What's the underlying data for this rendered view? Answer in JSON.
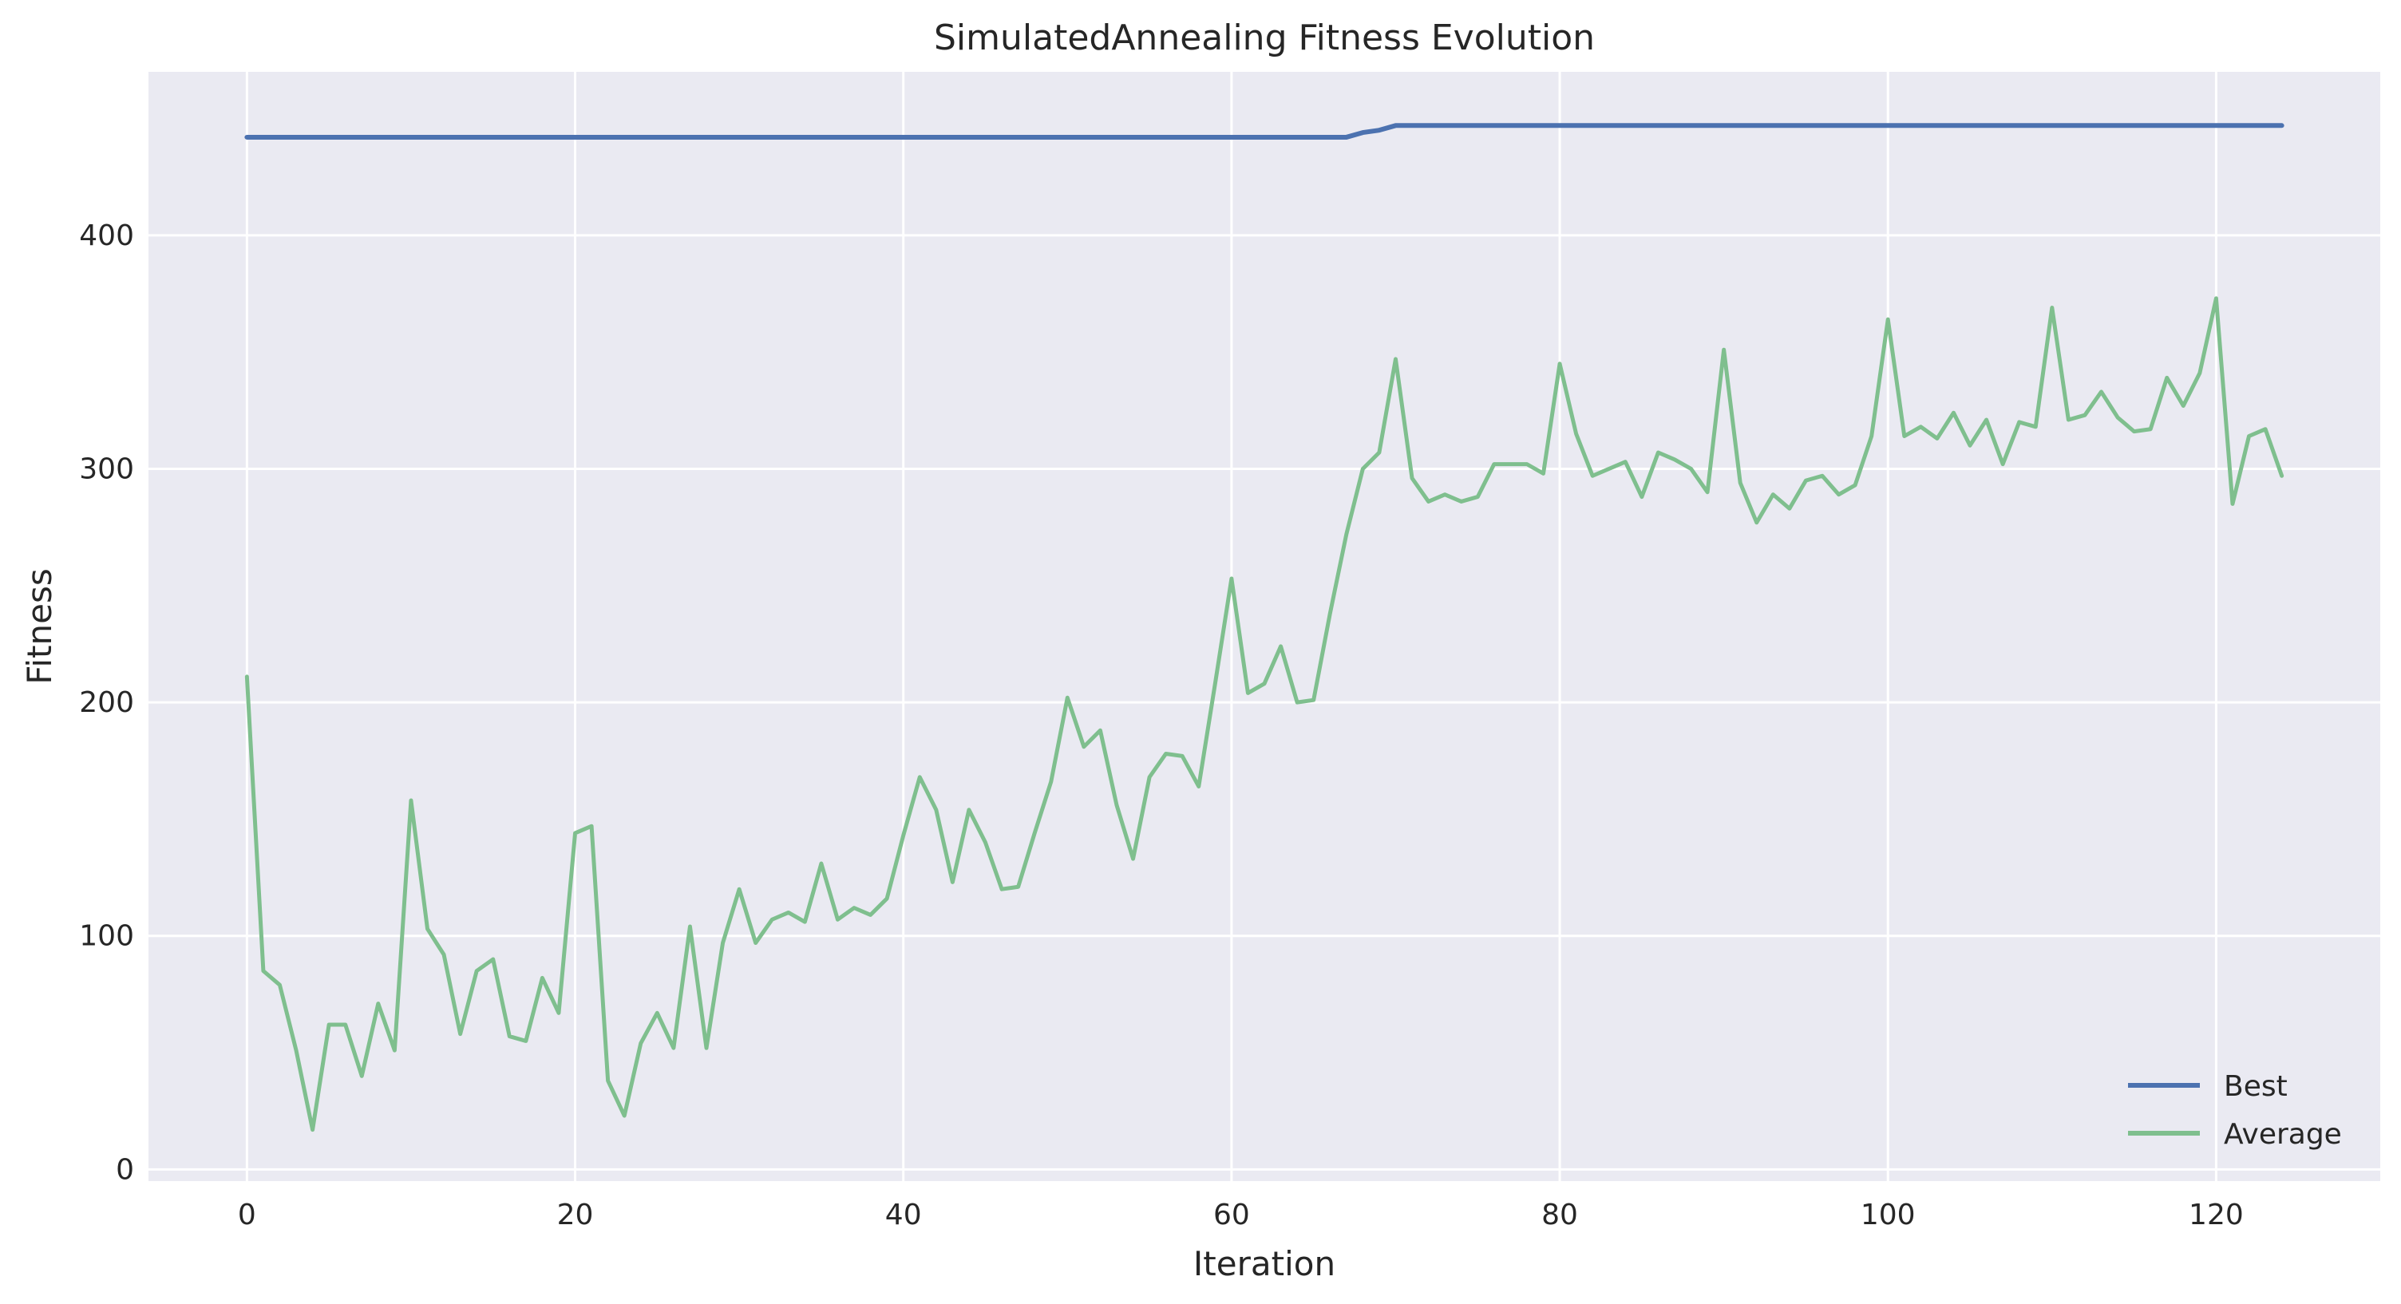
{
  "chart_data": {
    "type": "line",
    "title": "SimulatedAnnealing Fitness Evolution",
    "xlabel": "Iteration",
    "ylabel": "Fitness",
    "xlim": [
      -6,
      130
    ],
    "ylim": [
      -5,
      470
    ],
    "xticks": [
      0,
      20,
      40,
      60,
      80,
      100,
      120
    ],
    "yticks": [
      0,
      100,
      200,
      300,
      400
    ],
    "grid": true,
    "legend_position": "lower-right",
    "x": [
      0,
      1,
      2,
      3,
      4,
      5,
      6,
      7,
      8,
      9,
      10,
      11,
      12,
      13,
      14,
      15,
      16,
      17,
      18,
      19,
      20,
      21,
      22,
      23,
      24,
      25,
      26,
      27,
      28,
      29,
      30,
      31,
      32,
      33,
      34,
      35,
      36,
      37,
      38,
      39,
      40,
      41,
      42,
      43,
      44,
      45,
      46,
      47,
      48,
      49,
      50,
      51,
      52,
      53,
      54,
      55,
      56,
      57,
      58,
      59,
      60,
      61,
      62,
      63,
      64,
      65,
      66,
      67,
      68,
      69,
      70,
      71,
      72,
      73,
      74,
      75,
      76,
      77,
      78,
      79,
      80,
      81,
      82,
      83,
      84,
      85,
      86,
      87,
      88,
      89,
      90,
      91,
      92,
      93,
      94,
      95,
      96,
      97,
      98,
      99,
      100,
      101,
      102,
      103,
      104,
      105,
      106,
      107,
      108,
      109,
      110,
      111,
      112,
      113,
      114,
      115,
      116,
      117,
      118,
      119,
      120,
      121,
      122,
      123,
      124
    ],
    "series": [
      {
        "name": "Best",
        "color": "#4c72b0",
        "values": [
          442,
          442,
          442,
          442,
          442,
          442,
          442,
          442,
          442,
          442,
          442,
          442,
          442,
          442,
          442,
          442,
          442,
          442,
          442,
          442,
          442,
          442,
          442,
          442,
          442,
          442,
          442,
          442,
          442,
          442,
          442,
          442,
          442,
          442,
          442,
          442,
          442,
          442,
          442,
          442,
          442,
          442,
          442,
          442,
          442,
          442,
          442,
          442,
          442,
          442,
          442,
          442,
          442,
          442,
          442,
          442,
          442,
          442,
          442,
          442,
          442,
          442,
          442,
          442,
          442,
          442,
          442,
          442,
          444,
          445,
          447,
          447,
          447,
          447,
          447,
          447,
          447,
          447,
          447,
          447,
          447,
          447,
          447,
          447,
          447,
          447,
          447,
          447,
          447,
          447,
          447,
          447,
          447,
          447,
          447,
          447,
          447,
          447,
          447,
          447,
          447,
          447,
          447,
          447,
          447,
          447,
          447,
          447,
          447,
          447,
          447,
          447,
          447,
          447,
          447,
          447,
          447,
          447,
          447,
          447,
          447,
          447,
          447,
          447,
          447
        ]
      },
      {
        "name": "Average",
        "color": "#7fbf8e",
        "values": [
          211,
          85,
          79,
          51,
          17,
          62,
          62,
          40,
          71,
          51,
          158,
          103,
          92,
          58,
          85,
          90,
          57,
          55,
          82,
          67,
          144,
          147,
          38,
          23,
          54,
          67,
          52,
          104,
          52,
          97,
          120,
          97,
          107,
          110,
          106,
          131,
          107,
          112,
          109,
          116,
          143,
          168,
          154,
          123,
          154,
          140,
          120,
          121,
          144,
          166,
          202,
          181,
          188,
          156,
          133,
          168,
          178,
          177,
          164,
          208,
          253,
          204,
          208,
          224,
          200,
          201,
          238,
          272,
          300,
          307,
          347,
          296,
          286,
          289,
          286,
          288,
          302,
          302,
          302,
          298,
          345,
          315,
          297,
          300,
          303,
          288,
          307,
          304,
          300,
          290,
          351,
          294,
          277,
          289,
          283,
          295,
          297,
          289,
          293,
          314,
          364,
          314,
          318,
          313,
          324,
          310,
          321,
          302,
          320,
          318,
          369,
          321,
          323,
          333,
          322,
          316,
          317,
          339,
          327,
          341,
          373,
          285,
          314,
          317,
          297
        ]
      }
    ]
  }
}
